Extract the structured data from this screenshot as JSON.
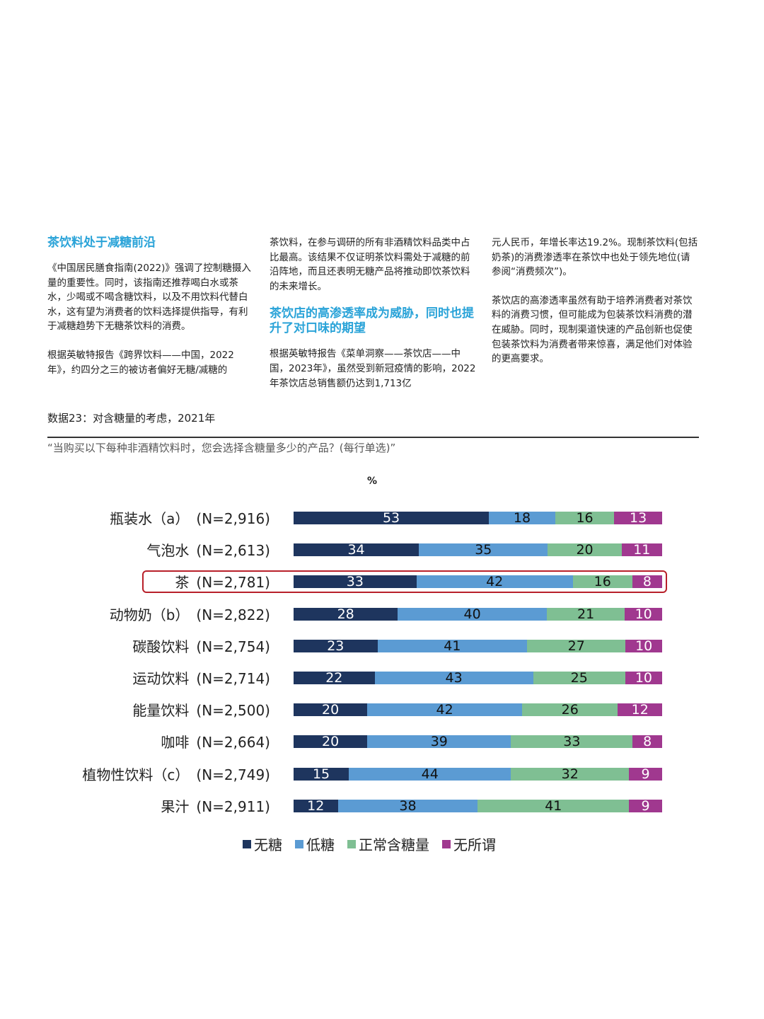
{
  "article": {
    "col1": {
      "heading": "茶饮料处于减糖前沿",
      "para1": "《中国居民膳食指南(2022)》强调了控制糖摄入量的重要性。同时，该指南还推荐喝白水或茶水，少喝或不喝含糖饮料，以及不用饮料代替白水，这有望为消费者的饮料选择提供指导，有利于减糖趋势下无糖茶饮料的消费。",
      "para2": "根据英敏特报告《跨界饮料——中国，2022年》，约四分之三的被访者偏好无糖/减糖的"
    },
    "col2": {
      "para1": "茶饮料，在参与调研的所有非酒精饮料品类中占比最高。该结果不仅证明茶饮料需处于减糖的前沿阵地，而且还表明无糖产品将推动即饮茶饮料的未来增长。",
      "heading": "茶饮店的高渗透率成为威胁，同时也提升了对口味的期望",
      "para2": "根据英敏特报告《菜单洞察——茶饮店——中国，2023年》，虽然受到新冠疫情的影响，2022年茶饮店总销售额仍达到1,713亿"
    },
    "col3": {
      "para1": "元人民币，年增长率达19.2%。现制茶饮料(包括奶茶)的消费渗透率在茶饮中也处于领先地位(请参阅“消费频次”)。",
      "para2": "茶饮店的高渗透率虽然有助于培养消费者对茶饮料的消费习惯，但可能成为包装茶饮料消费的潜在威胁。同时，现制渠道快速的产品创新也促使包装茶饮料为消费者带来惊喜，满足他们对体验的更高要求。"
    }
  },
  "figure": {
    "title": "数据23：对含糖量的考虑，2021年",
    "question": "“当购买以下每种非酒精饮料时，您会选择含糖量多少的产品？(每行单选)”",
    "unit": "%"
  },
  "colors": {
    "no_sugar": "#1e355e",
    "low_sugar": "#5b9bd3",
    "normal_sugar": "#7fbf93",
    "no_preference": "#a0388f",
    "highlight": "#b8202a",
    "heading_accent": "#2aa3d8"
  },
  "chart_data": {
    "type": "bar",
    "orientation": "horizontal",
    "stacked": true,
    "title": "数据23：对含糖量的考虑，2021年",
    "subtitle": "“当购买以下每种非酒精饮料时，您会选择含糖量多少的产品？(每行单选)”",
    "xlabel": "%",
    "ylabel": "",
    "xlim": [
      0,
      100
    ],
    "grid": false,
    "legend_position": "bottom",
    "highlighted_category": "茶",
    "categories": [
      "瓶装水（a）",
      "气泡水",
      "茶",
      "动物奶（b）",
      "碳酸饮料",
      "运动饮料",
      "能量饮料",
      "咖啡",
      "植物性饮料（c）",
      "果汁"
    ],
    "sample_sizes": [
      "(N=2,916)",
      "(N=2,613)",
      "(N=2,781)",
      "(N=2,822)",
      "(N=2,754)",
      "(N=2,714)",
      "(N=2,500)",
      "(N=2,664)",
      "(N=2,749)",
      "(N=2,911)"
    ],
    "series": [
      {
        "name": "无糖",
        "values": [
          53,
          34,
          33,
          28,
          23,
          22,
          20,
          20,
          15,
          12
        ]
      },
      {
        "name": "低糖",
        "values": [
          18,
          35,
          42,
          40,
          41,
          43,
          42,
          39,
          44,
          38
        ]
      },
      {
        "name": "正常含糖量",
        "values": [
          16,
          20,
          16,
          21,
          27,
          25,
          26,
          33,
          32,
          41
        ]
      },
      {
        "name": "无所谓",
        "values": [
          13,
          11,
          8,
          10,
          10,
          10,
          12,
          8,
          9,
          9
        ]
      }
    ]
  }
}
